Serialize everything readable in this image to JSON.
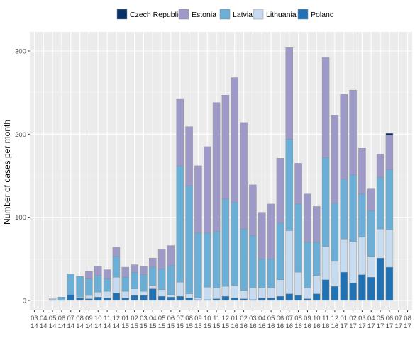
{
  "chart_data": {
    "type": "bar",
    "stacked": true,
    "ylabel": "Number of cases per month",
    "xlabel": "",
    "ylim": [
      0,
      325
    ],
    "yticks": [
      0,
      100,
      200,
      300
    ],
    "legend_position": "top",
    "grid": true,
    "categories": [
      [
        "03",
        "14"
      ],
      [
        "04",
        "14"
      ],
      [
        "05",
        "14"
      ],
      [
        "06",
        "14"
      ],
      [
        "07",
        "14"
      ],
      [
        "08",
        "14"
      ],
      [
        "09",
        "14"
      ],
      [
        "10",
        "14"
      ],
      [
        "11",
        "14"
      ],
      [
        "12",
        "14"
      ],
      [
        "01",
        "15"
      ],
      [
        "02",
        "15"
      ],
      [
        "03",
        "15"
      ],
      [
        "04",
        "15"
      ],
      [
        "05",
        "15"
      ],
      [
        "06",
        "15"
      ],
      [
        "07",
        "15"
      ],
      [
        "08",
        "15"
      ],
      [
        "09",
        "15"
      ],
      [
        "10",
        "15"
      ],
      [
        "11",
        "15"
      ],
      [
        "12",
        "15"
      ],
      [
        "01",
        "16"
      ],
      [
        "02",
        "16"
      ],
      [
        "03",
        "16"
      ],
      [
        "04",
        "16"
      ],
      [
        "05",
        "16"
      ],
      [
        "06",
        "16"
      ],
      [
        "07",
        "16"
      ],
      [
        "08",
        "16"
      ],
      [
        "09",
        "16"
      ],
      [
        "10",
        "16"
      ],
      [
        "11",
        "16"
      ],
      [
        "12",
        "16"
      ],
      [
        "01",
        "17"
      ],
      [
        "02",
        "17"
      ],
      [
        "03",
        "17"
      ],
      [
        "04",
        "17"
      ],
      [
        "05",
        "17"
      ],
      [
        "06",
        "17"
      ],
      [
        "07",
        "17"
      ],
      [
        "08",
        "17"
      ]
    ],
    "series": [
      {
        "name": "Czech Republic",
        "color": "#08306b",
        "values": [
          0,
          0,
          0,
          0,
          0,
          0,
          0,
          0,
          0,
          0,
          0,
          0,
          0,
          0,
          0,
          0,
          0,
          0,
          0,
          0,
          0,
          0,
          0,
          0,
          0,
          0,
          0,
          0,
          0,
          0,
          0,
          0,
          0,
          0,
          0,
          0,
          0,
          0,
          0,
          2,
          0,
          0
        ]
      },
      {
        "name": "Estonia",
        "color": "#9e9ac8",
        "values": [
          0,
          0,
          0,
          0,
          0,
          0,
          9,
          11,
          11,
          11,
          12,
          9,
          10,
          11,
          23,
          24,
          80,
          71,
          81,
          104,
          155,
          125,
          150,
          128,
          61,
          56,
          66,
          78,
          110,
          49,
          58,
          43,
          120,
          106,
          102,
          102,
          55,
          26,
          28,
          42,
          0,
          0
        ]
      },
      {
        "name": "Latvia",
        "color": "#6baed6",
        "values": [
          0,
          0,
          0,
          4,
          25,
          25,
          20,
          20,
          15,
          25,
          17,
          20,
          20,
          22,
          25,
          35,
          140,
          130,
          78,
          65,
          68,
          105,
          100,
          74,
          63,
          35,
          35,
          68,
          110,
          82,
          55,
          40,
          107,
          70,
          72,
          80,
          52,
          55,
          62,
          72,
          0,
          0
        ]
      },
      {
        "name": "Lithuania",
        "color": "#c6dbef",
        "values": [
          0,
          0,
          1,
          0,
          0,
          1,
          4,
          6,
          8,
          19,
          8,
          8,
          5,
          4,
          8,
          3,
          17,
          5,
          2,
          15,
          13,
          12,
          15,
          10,
          14,
          12,
          12,
          20,
          76,
          28,
          13,
          22,
          40,
          30,
          40,
          50,
          45,
          25,
          35,
          45,
          0,
          0
        ]
      },
      {
        "name": "Poland",
        "color": "#2171b5",
        "values": [
          0,
          0,
          1,
          0,
          7,
          3,
          2,
          4,
          3,
          9,
          3,
          6,
          6,
          14,
          5,
          4,
          5,
          3,
          1,
          1,
          2,
          5,
          3,
          2,
          1,
          3,
          3,
          5,
          8,
          6,
          2,
          8,
          25,
          17,
          34,
          21,
          31,
          28,
          51,
          40,
          0,
          0
        ]
      }
    ]
  }
}
